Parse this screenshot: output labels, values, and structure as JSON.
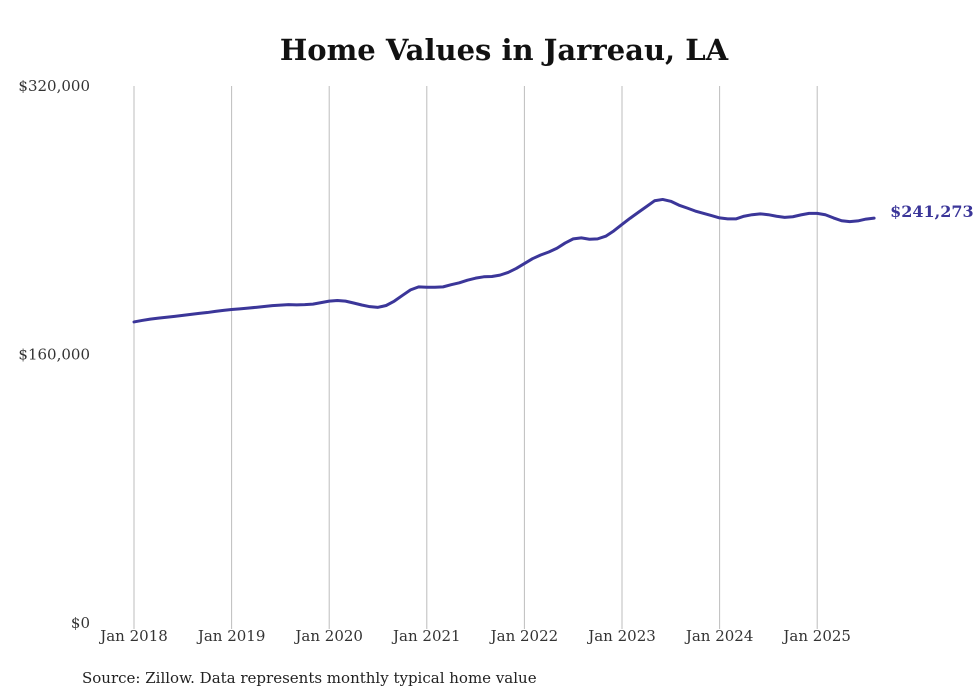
{
  "chart_data": {
    "type": "line",
    "title": "Home Values in Jarreau, LA",
    "xlabel": "",
    "ylabel": "",
    "x_start": "2018-01",
    "x_tick_labels": [
      "Jan 2018",
      "Jan 2019",
      "Jan 2020",
      "Jan 2021",
      "Jan 2022",
      "Jan 2023",
      "Jan 2024",
      "Jan 2025"
    ],
    "y_tick_labels": [
      "$0",
      "$160,000",
      "$320,000"
    ],
    "y_ticks": [
      0,
      160000,
      320000
    ],
    "ylim": [
      0,
      320000
    ],
    "grid": "vertical",
    "series": [
      {
        "color": "#3b3699",
        "end_label": "$241,273",
        "x": [
          "2018-01",
          "2018-02",
          "2018-03",
          "2018-04",
          "2018-05",
          "2018-06",
          "2018-07",
          "2018-08",
          "2018-09",
          "2018-10",
          "2018-11",
          "2018-12",
          "2019-01",
          "2019-02",
          "2019-03",
          "2019-04",
          "2019-05",
          "2019-06",
          "2019-07",
          "2019-08",
          "2019-09",
          "2019-10",
          "2019-11",
          "2019-12",
          "2020-01",
          "2020-02",
          "2020-03",
          "2020-04",
          "2020-05",
          "2020-06",
          "2020-07",
          "2020-08",
          "2020-09",
          "2020-10",
          "2020-11",
          "2020-12",
          "2021-01",
          "2021-02",
          "2021-03",
          "2021-04",
          "2021-05",
          "2021-06",
          "2021-07",
          "2021-08",
          "2021-09",
          "2021-10",
          "2021-11",
          "2021-12",
          "2022-01",
          "2022-02",
          "2022-03",
          "2022-04",
          "2022-05",
          "2022-06",
          "2022-07",
          "2022-08",
          "2022-09",
          "2022-10",
          "2022-11",
          "2022-12",
          "2023-01",
          "2023-02",
          "2023-03",
          "2023-04",
          "2023-05",
          "2023-06",
          "2023-07",
          "2023-08",
          "2023-09",
          "2023-10",
          "2023-11",
          "2023-12",
          "2024-01",
          "2024-02",
          "2024-03",
          "2024-04",
          "2024-05",
          "2024-06",
          "2024-07",
          "2024-08",
          "2024-09",
          "2024-10",
          "2024-11",
          "2024-12",
          "2025-01",
          "2025-02",
          "2025-03",
          "2025-04",
          "2025-05",
          "2025-06",
          "2025-07",
          "2025-08"
        ],
        "values": [
          179400,
          180300,
          181100,
          181700,
          182200,
          182700,
          183300,
          183900,
          184500,
          185000,
          185700,
          186300,
          186800,
          187200,
          187600,
          188100,
          188600,
          189100,
          189400,
          189700,
          189600,
          189700,
          190000,
          190900,
          191800,
          192200,
          191800,
          190700,
          189500,
          188500,
          188100,
          189200,
          191800,
          195200,
          198500,
          200300,
          200100,
          200100,
          200300,
          201600,
          202700,
          204300,
          205500,
          206300,
          206500,
          207300,
          208900,
          211300,
          214200,
          217100,
          219300,
          221100,
          223300,
          226400,
          228900,
          229500,
          228700,
          228900,
          230500,
          233700,
          237500,
          241200,
          244700,
          248100,
          251600,
          252400,
          251300,
          249000,
          247300,
          245500,
          244100,
          242800,
          241400,
          240800,
          240800,
          242400,
          243300,
          243800,
          243300,
          242400,
          241700,
          242100,
          243200,
          244100,
          244100,
          243300,
          241400,
          239700,
          239200,
          239600,
          240700,
          241273
        ]
      }
    ]
  },
  "footer": {
    "source": "Source: Zillow. Data represents monthly typical home value"
  }
}
